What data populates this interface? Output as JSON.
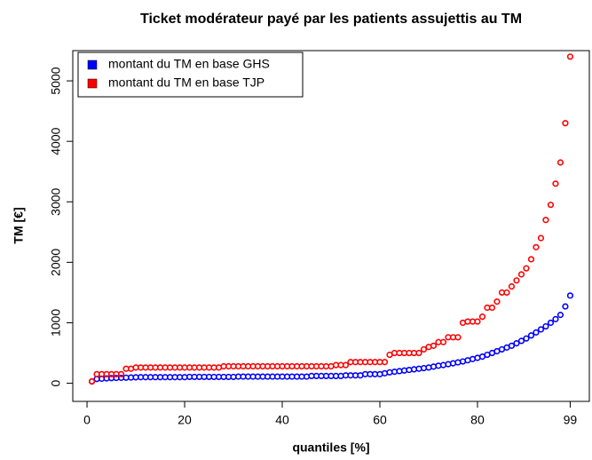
{
  "chart_data": {
    "type": "scatter",
    "title": "Ticket modérateur payé par les patients assujettis au TM",
    "x_label": "quantiles [%]",
    "y_label": "TM [€]",
    "x": [
      1,
      2,
      3,
      4,
      5,
      6,
      7,
      8,
      9,
      10,
      11,
      12,
      13,
      14,
      15,
      16,
      17,
      18,
      19,
      20,
      21,
      22,
      23,
      24,
      25,
      26,
      27,
      28,
      29,
      30,
      31,
      32,
      33,
      34,
      35,
      36,
      37,
      38,
      39,
      40,
      41,
      42,
      43,
      44,
      45,
      46,
      47,
      48,
      49,
      50,
      51,
      52,
      53,
      54,
      55,
      56,
      57,
      58,
      59,
      60,
      61,
      62,
      63,
      64,
      65,
      66,
      67,
      68,
      69,
      70,
      71,
      72,
      73,
      74,
      75,
      76,
      77,
      78,
      79,
      80,
      81,
      82,
      83,
      84,
      85,
      86,
      87,
      88,
      89,
      90,
      91,
      92,
      93,
      94,
      95,
      96,
      97,
      98,
      99
    ],
    "series": [
      {
        "name": "montant du TM en base GHS",
        "color": "#0000ff",
        "values": [
          30,
          70,
          75,
          80,
          85,
          88,
          90,
          92,
          95,
          98,
          100,
          100,
          100,
          100,
          100,
          100,
          100,
          100,
          100,
          100,
          105,
          105,
          105,
          105,
          105,
          105,
          105,
          105,
          105,
          105,
          110,
          110,
          110,
          110,
          110,
          110,
          110,
          110,
          110,
          110,
          110,
          110,
          110,
          110,
          110,
          120,
          120,
          120,
          120,
          120,
          120,
          120,
          130,
          130,
          130,
          130,
          150,
          150,
          150,
          150,
          165,
          180,
          190,
          200,
          210,
          220,
          230,
          240,
          250,
          260,
          275,
          290,
          300,
          315,
          330,
          345,
          360,
          380,
          400,
          420,
          440,
          470,
          500,
          530,
          560,
          590,
          620,
          660,
          700,
          740,
          790,
          840,
          890,
          940,
          1000,
          1060,
          1130,
          1270,
          1450
        ]
      },
      {
        "name": "montant du TM en base TJP",
        "color": "#ff0000",
        "values": [
          30,
          150,
          150,
          150,
          150,
          150,
          150,
          240,
          240,
          260,
          260,
          260,
          260,
          260,
          260,
          260,
          260,
          260,
          260,
          260,
          260,
          260,
          260,
          260,
          260,
          260,
          260,
          280,
          280,
          280,
          280,
          280,
          280,
          280,
          280,
          280,
          280,
          280,
          280,
          280,
          280,
          280,
          280,
          280,
          280,
          280,
          280,
          280,
          280,
          280,
          300,
          300,
          300,
          350,
          350,
          350,
          350,
          350,
          350,
          350,
          350,
          470,
          500,
          500,
          500,
          500,
          500,
          500,
          560,
          600,
          620,
          680,
          680,
          760,
          760,
          760,
          1000,
          1020,
          1020,
          1020,
          1100,
          1250,
          1250,
          1350,
          1500,
          1500,
          1600,
          1700,
          1800,
          1900,
          2050,
          2250,
          2400,
          2700,
          2950,
          3300,
          3650,
          4300,
          5400
        ]
      }
    ],
    "xlim": [
      -2.92,
      102.92
    ],
    "ylim": [
      -300,
      5500
    ],
    "xticks": [
      0,
      20,
      40,
      60,
      80,
      99
    ],
    "yticks": [
      0,
      1000,
      2000,
      3000,
      4000,
      5000
    ],
    "legend": "topleft"
  }
}
